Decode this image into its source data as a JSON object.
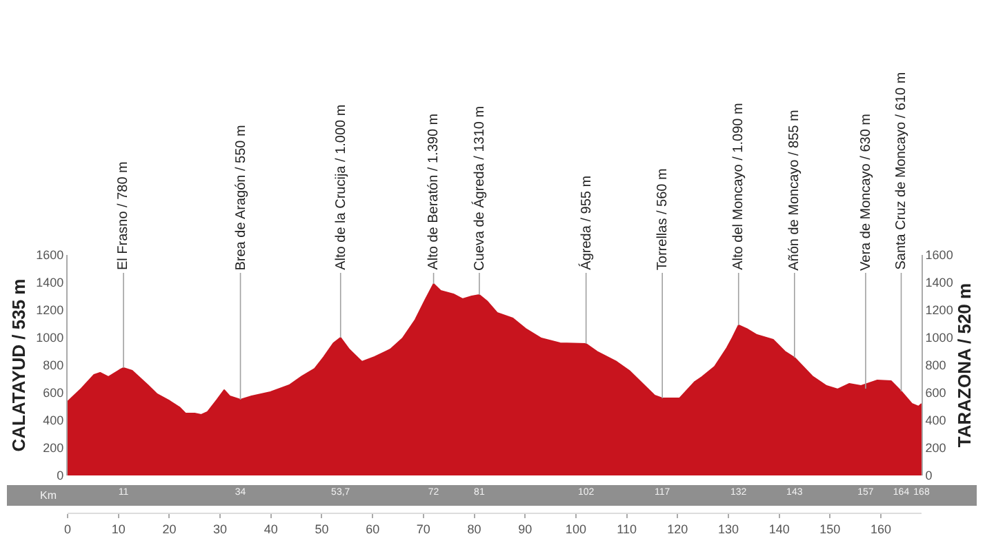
{
  "chart_data": {
    "type": "area",
    "ylabel": "CALATAYUD / 535 m",
    "y2label": "TARAZONA / 520 m",
    "x2label": "Km",
    "x": [
      0,
      2.7,
      5.2,
      6.4,
      8,
      10.2,
      11,
      12.7,
      15.8,
      17.6,
      20.1,
      22,
      23.2,
      25,
      26.3,
      27.5,
      29.4,
      30.8,
      31.9,
      34,
      36.2,
      39.9,
      43.6,
      46.1,
      48.6,
      50.4,
      52.3,
      53.7,
      55.4,
      57.9,
      60.4,
      63.5,
      65.9,
      68.4,
      70.3,
      72,
      73.4,
      75.9,
      77.7,
      79.5,
      81,
      82.5,
      84.5,
      87.6,
      90.1,
      93.2,
      96.9,
      102,
      104.3,
      108,
      110.5,
      113,
      115.5,
      117,
      120.4,
      123.4,
      124.8,
      127.3,
      129.7,
      130.8,
      132,
      133.8,
      135.6,
      138.8,
      141.1,
      143,
      146.5,
      149.3,
      151.5,
      153.8,
      156.1,
      159.3,
      162,
      164,
      166.1,
      167.4,
      168
    ],
    "series": [
      {
        "color": "#c8141e",
        "values": [
          535,
          630,
          730,
          745,
          715,
          765,
          780,
          760,
          655,
          590,
          540,
          495,
          450,
          450,
          440,
          460,
          550,
          620,
          575,
          550,
          575,
          605,
          655,
          720,
          775,
          860,
          960,
          1000,
          915,
          825,
          860,
          915,
          995,
          1130,
          1270,
          1390,
          1340,
          1315,
          1280,
          1300,
          1310,
          1265,
          1180,
          1140,
          1065,
          995,
          960,
          955,
          895,
          825,
          760,
          670,
          580,
          560,
          560,
          680,
          715,
          790,
          925,
          1000,
          1090,
          1060,
          1020,
          985,
          900,
          855,
          720,
          650,
          625,
          665,
          650,
          690,
          685,
          610,
          520,
          500,
          520
        ]
      }
    ],
    "xlim": [
      0,
      168
    ],
    "xticks": [
      0,
      10,
      20,
      30,
      40,
      50,
      60,
      70,
      80,
      90,
      100,
      110,
      120,
      130,
      140,
      150,
      160
    ],
    "x2lim": [
      0,
      168
    ],
    "x2ticks": [
      11,
      34,
      {
        "value": 53.7,
        "label": "53,7"
      },
      72,
      81,
      102,
      117,
      132,
      143,
      157,
      164,
      168
    ],
    "ylim": [
      0,
      1600
    ],
    "yticks": [
      0,
      200,
      400,
      600,
      800,
      1000,
      1200,
      1400,
      1600
    ],
    "y2lim": [
      0,
      1600
    ],
    "y2ticks": [
      0,
      200,
      400,
      600,
      800,
      1000,
      1200,
      1400,
      1600
    ],
    "annotations": [
      {
        "text": "El Frasno / 780 m",
        "x": 11,
        "y": 780
      },
      {
        "text": "Brea de Aragón / 550 m",
        "x": 34,
        "y": 550
      },
      {
        "text": "Alto de la Crucija / 1.000 m",
        "x": 53.7,
        "y": 1000
      },
      {
        "text": "Alto de Beratón / 1.390 m",
        "x": 72,
        "y": 1390
      },
      {
        "text": "Cueva de Ágreda / 1310 m",
        "x": 81,
        "y": 1310
      },
      {
        "text": "Ágreda / 955 m",
        "x": 102,
        "y": 955
      },
      {
        "text": "Torrellas / 560 m",
        "x": 117,
        "y": 560
      },
      {
        "text": "Alto del Moncayo / 1.090 m",
        "x": 132,
        "y": 1090
      },
      {
        "text": "Añón de Moncayo / 855 m",
        "x": 143,
        "y": 855
      },
      {
        "text": "Vera de Moncayo / 630 m",
        "x": 157,
        "y": 630
      },
      {
        "text": "Santa Cruz de Moncayo / 610 m",
        "x": 164,
        "y": 610
      }
    ]
  }
}
